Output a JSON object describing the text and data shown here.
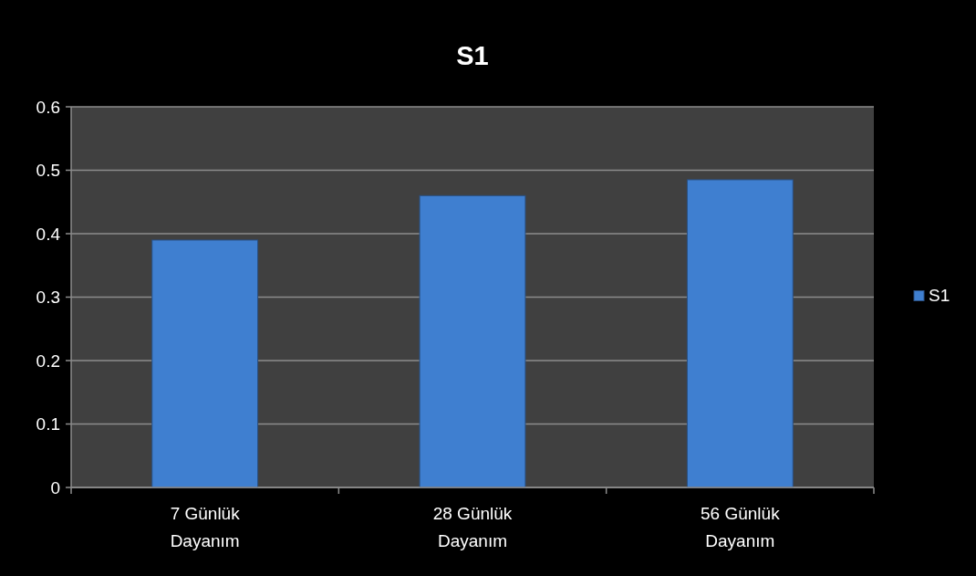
{
  "chart_data": {
    "type": "bar",
    "title": "S1",
    "categories": [
      "7 Günlük Dayanım",
      "28 Günlük Dayanım",
      "56 Günlük Dayanım"
    ],
    "series": [
      {
        "name": "S1",
        "color": "#3f7fd0",
        "values": [
          0.39,
          0.46,
          0.485
        ]
      }
    ],
    "ylim": [
      0,
      0.6
    ],
    "yticks": [
      0,
      0.1,
      0.2,
      0.3,
      0.4,
      0.5,
      0.6
    ],
    "grid": "y",
    "legend": "right"
  }
}
